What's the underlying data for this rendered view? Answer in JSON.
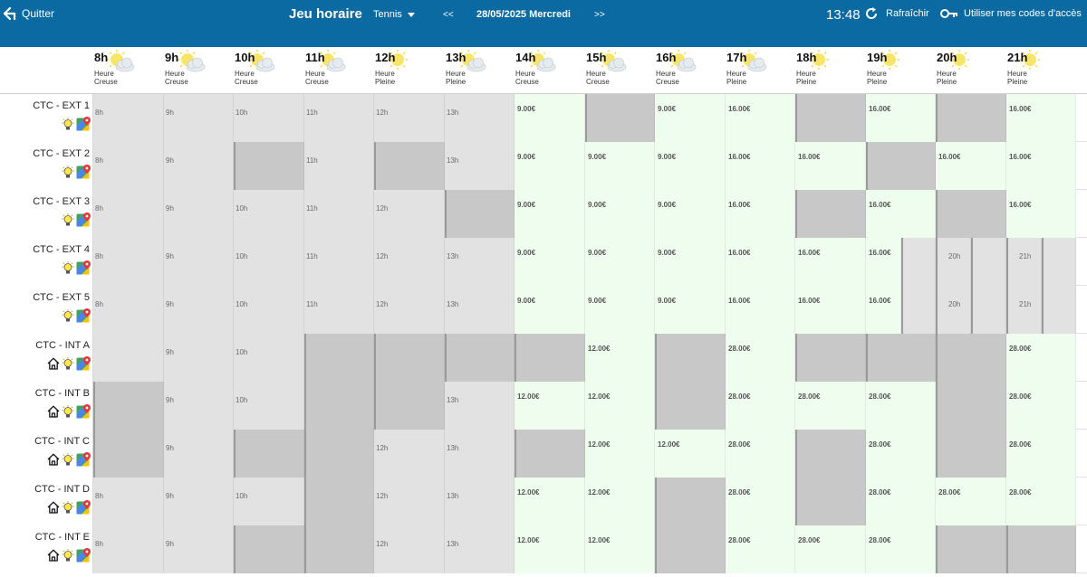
{
  "topbar": {
    "quit_label": "Quitter",
    "title": "Jeu horaire",
    "sport_label": "Tennis",
    "prev_label": "<<",
    "date_label": "28/05/2025 Mercredi",
    "next_label": ">>",
    "clock": "13:48",
    "refresh_label": "Rafraîchir",
    "codes_label": "Utiliser mes codes d'accès",
    "color": "#0a6aa1"
  },
  "hours": [
    {
      "hour": "8h",
      "l1": "Heure",
      "l2": "Creuse",
      "weather": "sun-cloud"
    },
    {
      "hour": "9h",
      "l1": "Heure",
      "l2": "Creuse",
      "weather": "sun-cloud"
    },
    {
      "hour": "10h",
      "l1": "Heure",
      "l2": "Creuse",
      "weather": "sun-cloud"
    },
    {
      "hour": "11h",
      "l1": "Heure",
      "l2": "Creuse",
      "weather": "sun-cloud"
    },
    {
      "hour": "12h",
      "l1": "Heure",
      "l2": "Pleine",
      "weather": "sun"
    },
    {
      "hour": "13h",
      "l1": "Heure",
      "l2": "Pleine",
      "weather": "sun-cloud"
    },
    {
      "hour": "14h",
      "l1": "Heure",
      "l2": "Creuse",
      "weather": "sun-cloud"
    },
    {
      "hour": "15h",
      "l1": "Heure",
      "l2": "Creuse",
      "weather": "sun-cloud"
    },
    {
      "hour": "16h",
      "l1": "Heure",
      "l2": "Creuse",
      "weather": "sun-cloud"
    },
    {
      "hour": "17h",
      "l1": "Heure",
      "l2": "Pleine",
      "weather": "sun-cloud"
    },
    {
      "hour": "18h",
      "l1": "Heure",
      "l2": "Pleine",
      "weather": "sun"
    },
    {
      "hour": "19h",
      "l1": "Heure",
      "l2": "Pleine",
      "weather": "sun"
    },
    {
      "hour": "20h",
      "l1": "Heure",
      "l2": "Pleine",
      "weather": "sun"
    },
    {
      "hour": "21h",
      "l1": "Heure",
      "l2": "Pleine",
      "weather": "sun"
    }
  ],
  "courts": [
    {
      "name": "CTC - EXT 1",
      "indoor": false,
      "cells": [
        {
          "s": "past",
          "t": "8h"
        },
        {
          "s": "past",
          "t": "9h"
        },
        {
          "s": "past",
          "t": "10h"
        },
        {
          "s": "past",
          "t": "11h"
        },
        {
          "s": "past",
          "t": "12h"
        },
        {
          "s": "past",
          "t": "13h"
        },
        {
          "s": "free",
          "t": "9.00€"
        },
        {
          "s": "booked",
          "t": ""
        },
        {
          "s": "free",
          "t": "9.00€"
        },
        {
          "s": "free",
          "t": "16.00€"
        },
        {
          "s": "booked",
          "t": ""
        },
        {
          "s": "free",
          "t": "16.00€"
        },
        {
          "s": "booked",
          "t": ""
        },
        {
          "s": "free",
          "t": "16.00€"
        }
      ]
    },
    {
      "name": "CTC - EXT 2",
      "indoor": false,
      "cells": [
        {
          "s": "past",
          "t": "8h"
        },
        {
          "s": "past",
          "t": "9h"
        },
        {
          "s": "booked",
          "t": ""
        },
        {
          "s": "past",
          "t": "11h"
        },
        {
          "s": "booked",
          "t": ""
        },
        {
          "s": "past",
          "t": "13h"
        },
        {
          "s": "free",
          "t": "9.00€"
        },
        {
          "s": "free",
          "t": "9.00€"
        },
        {
          "s": "free",
          "t": "9.00€"
        },
        {
          "s": "free",
          "t": "16.00€"
        },
        {
          "s": "free",
          "t": "16.00€"
        },
        {
          "s": "booked",
          "t": ""
        },
        {
          "s": "free",
          "t": "16.00€"
        },
        {
          "s": "free",
          "t": "16.00€"
        }
      ]
    },
    {
      "name": "CTC - EXT 3",
      "indoor": false,
      "cells": [
        {
          "s": "past",
          "t": "8h"
        },
        {
          "s": "past",
          "t": "9h"
        },
        {
          "s": "past",
          "t": "10h"
        },
        {
          "s": "past",
          "t": "11h"
        },
        {
          "s": "past",
          "t": "12h"
        },
        {
          "s": "booked",
          "t": ""
        },
        {
          "s": "free",
          "t": "9.00€"
        },
        {
          "s": "free",
          "t": "9.00€"
        },
        {
          "s": "free",
          "t": "9.00€"
        },
        {
          "s": "free",
          "t": "16.00€"
        },
        {
          "s": "booked",
          "t": ""
        },
        {
          "s": "free",
          "t": "16.00€"
        },
        {
          "s": "booked",
          "t": ""
        },
        {
          "s": "free",
          "t": "16.00€"
        }
      ]
    },
    {
      "name": "CTC - EXT 4",
      "indoor": false,
      "cells": [
        {
          "s": "past",
          "t": "8h"
        },
        {
          "s": "past",
          "t": "9h"
        },
        {
          "s": "past",
          "t": "10h"
        },
        {
          "s": "past",
          "t": "11h"
        },
        {
          "s": "past",
          "t": "12h"
        },
        {
          "s": "past",
          "t": "13h"
        },
        {
          "s": "free",
          "t": "9.00€"
        },
        {
          "s": "free",
          "t": "9.00€"
        },
        {
          "s": "free",
          "t": "9.00€"
        },
        {
          "s": "free",
          "t": "16.00€"
        },
        {
          "s": "free",
          "t": "16.00€"
        },
        {
          "s": "split",
          "t": "16.00€"
        },
        {
          "s": "half",
          "t": "20h"
        },
        {
          "s": "half",
          "t": "21h"
        }
      ]
    },
    {
      "name": "CTC - EXT 5",
      "indoor": false,
      "cells": [
        {
          "s": "past",
          "t": "8h"
        },
        {
          "s": "past",
          "t": "9h"
        },
        {
          "s": "past",
          "t": "10h"
        },
        {
          "s": "past",
          "t": "11h"
        },
        {
          "s": "past",
          "t": "12h"
        },
        {
          "s": "past",
          "t": "13h"
        },
        {
          "s": "free",
          "t": "9.00€"
        },
        {
          "s": "free",
          "t": "9.00€"
        },
        {
          "s": "free",
          "t": "9.00€"
        },
        {
          "s": "free",
          "t": "16.00€"
        },
        {
          "s": "free",
          "t": "16.00€"
        },
        {
          "s": "split",
          "t": "16.00€"
        },
        {
          "s": "half",
          "t": "20h"
        },
        {
          "s": "half",
          "t": "21h"
        }
      ]
    },
    {
      "name": "CTC - INT A",
      "indoor": true,
      "cells": [
        {
          "s": "past",
          "t": ""
        },
        {
          "s": "past",
          "t": "9h"
        },
        {
          "s": "past",
          "t": "10h"
        },
        {
          "s": "booked",
          "t": ""
        },
        {
          "s": "booked",
          "t": ""
        },
        {
          "s": "booked",
          "t": ""
        },
        {
          "s": "booked",
          "t": ""
        },
        {
          "s": "free",
          "t": "12.00€"
        },
        {
          "s": "booked",
          "t": ""
        },
        {
          "s": "free",
          "t": "28.00€"
        },
        {
          "s": "booked",
          "t": ""
        },
        {
          "s": "booked",
          "t": ""
        },
        {
          "s": "booked",
          "t": ""
        },
        {
          "s": "free",
          "t": "28.00€"
        }
      ]
    },
    {
      "name": "CTC - INT B",
      "indoor": true,
      "cells": [
        {
          "s": "booked",
          "t": ""
        },
        {
          "s": "past",
          "t": "9h"
        },
        {
          "s": "past",
          "t": "10h"
        },
        {
          "s": "booked",
          "t": ""
        },
        {
          "s": "booked",
          "t": ""
        },
        {
          "s": "past",
          "t": "13h"
        },
        {
          "s": "free",
          "t": "12.00€"
        },
        {
          "s": "free",
          "t": "12.00€"
        },
        {
          "s": "booked",
          "t": ""
        },
        {
          "s": "free",
          "t": "28.00€"
        },
        {
          "s": "free",
          "t": "28.00€"
        },
        {
          "s": "free",
          "t": "28.00€"
        },
        {
          "s": "booked",
          "t": ""
        },
        {
          "s": "free",
          "t": "28.00€"
        }
      ]
    },
    {
      "name": "CTC - INT C",
      "indoor": true,
      "cells": [
        {
          "s": "booked",
          "t": ""
        },
        {
          "s": "past",
          "t": "9h"
        },
        {
          "s": "booked",
          "t": ""
        },
        {
          "s": "booked",
          "t": ""
        },
        {
          "s": "past",
          "t": "12h"
        },
        {
          "s": "past",
          "t": "13h"
        },
        {
          "s": "booked",
          "t": ""
        },
        {
          "s": "free",
          "t": "12.00€"
        },
        {
          "s": "free",
          "t": "12.00€"
        },
        {
          "s": "free",
          "t": "28.00€"
        },
        {
          "s": "booked",
          "t": ""
        },
        {
          "s": "free",
          "t": "28.00€"
        },
        {
          "s": "booked",
          "t": ""
        },
        {
          "s": "free",
          "t": "28.00€"
        }
      ]
    },
    {
      "name": "CTC - INT D",
      "indoor": true,
      "cells": [
        {
          "s": "past",
          "t": "8h"
        },
        {
          "s": "past",
          "t": "9h"
        },
        {
          "s": "past",
          "t": "10h"
        },
        {
          "s": "booked",
          "t": ""
        },
        {
          "s": "past",
          "t": "12h"
        },
        {
          "s": "past",
          "t": "13h"
        },
        {
          "s": "free",
          "t": "12.00€"
        },
        {
          "s": "free",
          "t": "12.00€"
        },
        {
          "s": "booked",
          "t": ""
        },
        {
          "s": "free",
          "t": "28.00€"
        },
        {
          "s": "booked",
          "t": ""
        },
        {
          "s": "free",
          "t": "28.00€"
        },
        {
          "s": "free",
          "t": "28.00€"
        },
        {
          "s": "free",
          "t": "28.00€"
        }
      ]
    },
    {
      "name": "CTC - INT E",
      "indoor": true,
      "cells": [
        {
          "s": "past",
          "t": "8h"
        },
        {
          "s": "past",
          "t": "9h"
        },
        {
          "s": "booked",
          "t": ""
        },
        {
          "s": "booked",
          "t": ""
        },
        {
          "s": "past",
          "t": "12h"
        },
        {
          "s": "past",
          "t": "13h"
        },
        {
          "s": "free",
          "t": "12.00€"
        },
        {
          "s": "free",
          "t": "12.00€"
        },
        {
          "s": "booked",
          "t": ""
        },
        {
          "s": "free",
          "t": "28.00€"
        },
        {
          "s": "free",
          "t": "28.00€"
        },
        {
          "s": "free",
          "t": "28.00€"
        },
        {
          "s": "booked",
          "t": ""
        },
        {
          "s": "booked",
          "t": ""
        }
      ]
    }
  ],
  "colors": {
    "past": "#e2e2e2",
    "free": "#effdef",
    "booked": "#c8c8c8"
  }
}
